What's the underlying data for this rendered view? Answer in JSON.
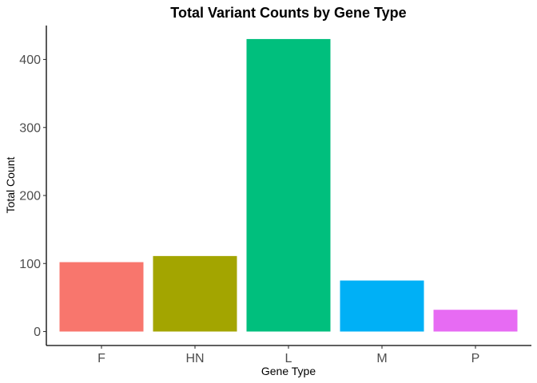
{
  "chart_data": {
    "type": "bar",
    "title": "Total Variant Counts by Gene Type",
    "xlabel": "Gene Type",
    "ylabel": "Total Count",
    "categories": [
      "F",
      "HN",
      "L",
      "M",
      "P"
    ],
    "values": [
      102,
      111,
      430,
      75,
      32
    ],
    "colors": [
      "#F8766D",
      "#A3A500",
      "#00BF7D",
      "#00B0F6",
      "#E76BF3"
    ],
    "ylim": [
      0,
      450
    ],
    "yticks": [
      0,
      100,
      200,
      300,
      400
    ],
    "grid": false,
    "legend": "none"
  }
}
